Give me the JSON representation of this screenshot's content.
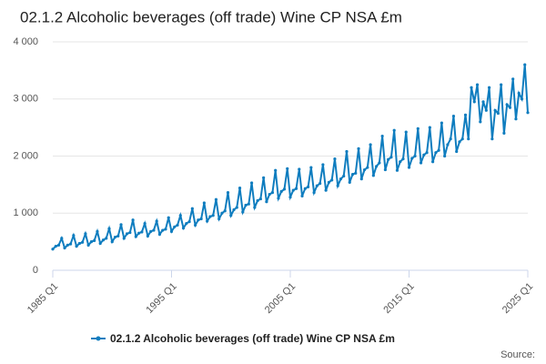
{
  "chart_data": {
    "type": "line",
    "title": "02.1.2 Alcoholic beverages (off trade) Wine CP NSA £m",
    "source": "Source:",
    "categories": [
      "1985 Q1",
      null,
      null,
      null,
      null,
      null,
      null,
      null,
      null,
      null,
      null,
      null,
      null,
      null,
      null,
      null,
      null,
      null,
      null,
      null,
      null,
      null,
      null,
      null,
      null,
      null,
      null,
      null,
      null,
      null,
      null,
      null,
      null,
      null,
      null,
      null,
      null,
      null,
      null,
      null,
      "1995 Q1",
      null,
      null,
      null,
      null,
      null,
      null,
      null,
      null,
      null,
      null,
      null,
      null,
      null,
      null,
      null,
      null,
      null,
      null,
      null,
      null,
      null,
      null,
      null,
      null,
      null,
      null,
      null,
      null,
      null,
      null,
      null,
      null,
      null,
      null,
      null,
      null,
      null,
      null,
      null,
      "2005 Q1",
      null,
      null,
      null,
      null,
      null,
      null,
      null,
      null,
      null,
      null,
      null,
      null,
      null,
      null,
      null,
      null,
      null,
      null,
      null,
      null,
      null,
      null,
      null,
      null,
      null,
      null,
      null,
      null,
      null,
      null,
      null,
      null,
      null,
      null,
      null,
      null,
      null,
      null,
      null,
      "2015 Q1",
      null,
      null,
      null,
      null,
      null,
      null,
      null,
      null,
      null,
      null,
      null,
      null,
      null,
      null,
      null,
      null,
      null,
      null,
      null,
      null,
      null,
      null,
      null,
      null,
      null,
      null,
      null,
      null,
      null,
      null,
      null,
      null,
      null,
      null,
      null,
      null,
      null,
      null,
      null,
      "2025 Q1"
    ],
    "series": [
      {
        "name": "02.1.2 Alcoholic beverages (off trade) Wine CP NSA £m",
        "color": "#0f7dbf",
        "values": [
          370,
          420,
          440,
          560,
          390,
          440,
          460,
          610,
          420,
          470,
          490,
          640,
          440,
          500,
          520,
          680,
          470,
          530,
          560,
          730,
          500,
          580,
          600,
          800,
          560,
          640,
          660,
          880,
          590,
          650,
          670,
          820,
          600,
          680,
          700,
          860,
          630,
          700,
          720,
          920,
          680,
          760,
          790,
          960,
          740,
          820,
          850,
          1080,
          790,
          880,
          900,
          1180,
          860,
          940,
          960,
          1240,
          900,
          1000,
          1040,
          1360,
          960,
          1060,
          1100,
          1440,
          1020,
          1140,
          1160,
          1530,
          1100,
          1220,
          1250,
          1620,
          1200,
          1330,
          1360,
          1750,
          1260,
          1380,
          1420,
          1780,
          1280,
          1400,
          1430,
          1770,
          1300,
          1430,
          1460,
          1800,
          1360,
          1480,
          1520,
          1850,
          1400,
          1540,
          1580,
          1950,
          1480,
          1600,
          1650,
          2080,
          1540,
          1680,
          1700,
          2130,
          1600,
          1760,
          1800,
          2200,
          1660,
          1820,
          1880,
          2350,
          1760,
          1940,
          1980,
          2450,
          1750,
          1900,
          1950,
          2420,
          1800,
          1960,
          2000,
          2480,
          1880,
          2020,
          2060,
          2500,
          1900,
          2060,
          2100,
          2580,
          2000,
          2200,
          2300,
          2700,
          2080,
          2250,
          2300,
          2720,
          2300,
          3200,
          2950,
          3250,
          2600,
          2950,
          2800,
          3200,
          2300,
          2800,
          2750,
          3250,
          2400,
          2900,
          2850,
          3350,
          2650,
          3100,
          3000,
          3600,
          2760
        ]
      }
    ],
    "ylim": [
      0,
      4000
    ],
    "yticks": [
      0,
      {
        "value": 1000,
        "label": "1 000"
      },
      {
        "value": 2000,
        "label": "2 000"
      },
      {
        "value": 3000,
        "label": "3 000"
      },
      {
        "value": 4000,
        "label": "4 000"
      }
    ],
    "grid": true
  }
}
